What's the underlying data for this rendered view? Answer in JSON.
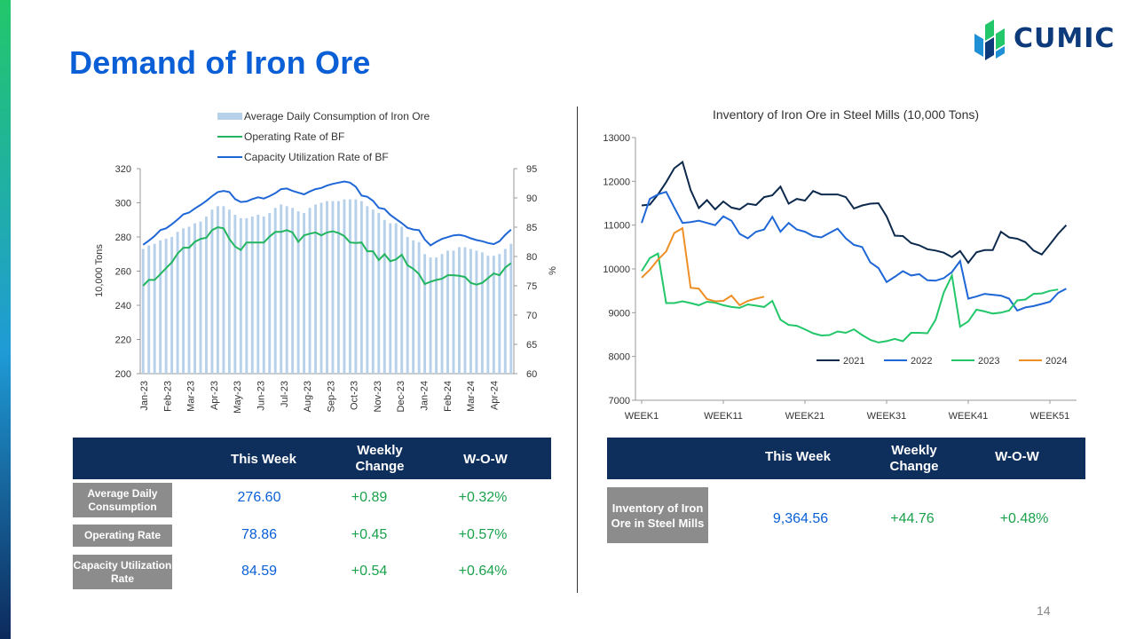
{
  "slide": {
    "title": "Demand of Iron Ore",
    "brand": "CUMIC",
    "page_number": "14",
    "colors": {
      "title": "#0a5fd6",
      "header_bg": "#0e2f5c",
      "label_bg": "#8c8c8c",
      "value_blue": "#0a5fd6",
      "value_green": "#1aa14b"
    }
  },
  "chart_data": [
    {
      "type": "bar+line",
      "title": "",
      "ylabel": "10,000 Tons",
      "y2label": "%",
      "ylim": [
        200,
        320
      ],
      "y2lim": [
        60,
        95
      ],
      "yticks": [
        200,
        220,
        240,
        260,
        280,
        300,
        320
      ],
      "y2ticks": [
        60,
        65,
        70,
        75,
        80,
        85,
        90,
        95
      ],
      "xticks": [
        "Jan-23",
        "Feb-23",
        "Mar-23",
        "Apr-23",
        "May-23",
        "Jun-23",
        "Jul-23",
        "Aug-23",
        "Sep-23",
        "Oct-23",
        "Nov-23",
        "Dec-23",
        "Jan-24",
        "Feb-24",
        "Mar-24",
        "Apr-24"
      ],
      "legend": [
        "Average Daily Consumption of Iron Ore",
        "Operating Rate of BF",
        "Capacity Utilization Rate of BF"
      ],
      "legend_position": "top",
      "series": [
        {
          "name": "Average Daily Consumption of Iron Ore",
          "kind": "bar",
          "axis": "left",
          "color": "#b7d1ea",
          "values": [
            273,
            275,
            276,
            278,
            279,
            280,
            283,
            285,
            286,
            288,
            289,
            292,
            296,
            298,
            298,
            296,
            293,
            291,
            291,
            292,
            293,
            292,
            294,
            297,
            299,
            298,
            297,
            295,
            294,
            297,
            299,
            300,
            301,
            301,
            301,
            302,
            302,
            302,
            301,
            298,
            296,
            294,
            290,
            288,
            288,
            286,
            280,
            278,
            277,
            270,
            268,
            268,
            270,
            272,
            272,
            274,
            274,
            273,
            272,
            271,
            269,
            269,
            270,
            273,
            276
          ]
        },
        {
          "name": "Operating Rate of BF",
          "kind": "line",
          "axis": "right",
          "color": "#22b55f",
          "values": [
            75,
            76,
            76,
            77,
            78,
            79,
            80.5,
            81.5,
            81.5,
            82.5,
            83,
            83.2,
            84.5,
            85,
            84.8,
            83,
            81.7,
            81.1,
            82.4,
            82.4,
            82.4,
            82.4,
            83.4,
            84.2,
            84.2,
            84.5,
            84.1,
            82.5,
            83.6,
            83.9,
            84.1,
            83.6,
            84.1,
            84.3,
            84,
            83.5,
            82.4,
            82.3,
            82.4,
            80.9,
            80.9,
            79.4,
            80.4,
            79.2,
            79.5,
            80.3,
            78.5,
            77.9,
            77,
            75.3,
            75.7,
            76,
            76.2,
            76.8,
            76.8,
            76.7,
            76.5,
            75.5,
            75.2,
            75.5,
            76.3,
            77.1,
            76.8,
            78.1,
            78.86
          ]
        },
        {
          "name": "Capacity Utilization Rate of BF",
          "kind": "line",
          "axis": "right",
          "color": "#1f67d6",
          "values": [
            82,
            82.7,
            83.5,
            84.5,
            84.8,
            85.5,
            86.3,
            87.2,
            87.5,
            88.2,
            88.8,
            89.5,
            90.3,
            91,
            91.2,
            91,
            89.8,
            89.3,
            89.4,
            89.8,
            90.1,
            89.9,
            90.3,
            90.8,
            91.5,
            91.6,
            91.2,
            90.9,
            90.6,
            91.1,
            91.5,
            91.7,
            92.1,
            92.4,
            92.6,
            92.8,
            92.6,
            91.9,
            90.4,
            90.2,
            89.5,
            88.3,
            88.1,
            87.1,
            86.4,
            85.7,
            84.9,
            84.6,
            84.5,
            82.9,
            81.9,
            82.5,
            83,
            83.3,
            83.6,
            83.7,
            83.5,
            83.1,
            82.8,
            82.6,
            82.3,
            82.1,
            82.6,
            83.7,
            84.59
          ]
        }
      ]
    },
    {
      "type": "line",
      "title": "Inventory of Iron Ore in Steel Mills (10,000 Tons)",
      "ylim": [
        7000,
        13000
      ],
      "yticks": [
        7000,
        8000,
        9000,
        10000,
        11000,
        12000,
        13000
      ],
      "xticks": [
        "WEEK1",
        "WEEK11",
        "WEEK21",
        "WEEK31",
        "WEEK41",
        "WEEK51"
      ],
      "xlim": [
        1,
        52
      ],
      "legend_position": "bottom-right",
      "series": [
        {
          "name": "2021",
          "color": "#0d2a4d",
          "values": [
            11450,
            11470,
            11700,
            11980,
            12300,
            12440,
            11800,
            11390,
            11570,
            11360,
            11540,
            11400,
            11360,
            11490,
            11460,
            11640,
            11680,
            11880,
            11490,
            11600,
            11560,
            11780,
            11700,
            11700,
            11700,
            11640,
            11380,
            11450,
            11490,
            11500,
            11200,
            10760,
            10750,
            10590,
            10540,
            10450,
            10420,
            10370,
            10270,
            10410,
            10140,
            10380,
            10430,
            10430,
            10850,
            10720,
            10690,
            10610,
            10420,
            10330,
            10560,
            10800,
            11000
          ]
        },
        {
          "name": "2022",
          "color": "#1f67d6",
          "values": [
            11050,
            11600,
            11700,
            11760,
            11400,
            11050,
            11070,
            11100,
            11050,
            11000,
            11200,
            11100,
            10800,
            10700,
            10850,
            10900,
            11190,
            10850,
            11050,
            10900,
            10850,
            10750,
            10720,
            10820,
            10920,
            10700,
            10550,
            10500,
            10150,
            10020,
            9700,
            9820,
            9950,
            9850,
            9880,
            9740,
            9730,
            9790,
            9930,
            10180,
            9320,
            9370,
            9430,
            9410,
            9390,
            9320,
            9050,
            9120,
            9150,
            9200,
            9250,
            9450,
            9550
          ]
        },
        {
          "name": "2023",
          "color": "#22c76a",
          "values": [
            9950,
            10250,
            10350,
            9220,
            9220,
            9260,
            9220,
            9170,
            9250,
            9230,
            9170,
            9130,
            9110,
            9190,
            9160,
            9130,
            9270,
            8840,
            8720,
            8700,
            8620,
            8530,
            8480,
            8490,
            8570,
            8540,
            8620,
            8490,
            8380,
            8320,
            8350,
            8400,
            8350,
            8540,
            8540,
            8530,
            8840,
            9460,
            9850,
            8680,
            8800,
            9070,
            9030,
            8980,
            9000,
            9050,
            9280,
            9300,
            9430,
            9440,
            9500,
            9530
          ]
        },
        {
          "name": "2024",
          "color": "#ee8f25",
          "values": [
            9800,
            9980,
            10210,
            10400,
            10820,
            10930,
            9570,
            9550,
            9310,
            9260,
            9270,
            9390,
            9170,
            9270,
            9320,
            9364.56
          ]
        }
      ]
    }
  ],
  "left_table": {
    "headers": [
      "This Week",
      "Weekly Change",
      "W-O-W"
    ],
    "rows": [
      {
        "label": "Average Daily Consumption",
        "this_week": "276.60",
        "weekly_change": "+0.89",
        "wow": "+0.32%"
      },
      {
        "label": "Operating Rate",
        "this_week": "78.86",
        "weekly_change": "+0.45",
        "wow": "+0.57%"
      },
      {
        "label": "Capacity Utilization Rate",
        "this_week": "84.59",
        "weekly_change": "+0.54",
        "wow": "+0.64%"
      }
    ]
  },
  "right_table": {
    "headers": [
      "This Week",
      "Weekly Change",
      "W-O-W"
    ],
    "rows": [
      {
        "label": "Inventory of Iron Ore in Steel Mills",
        "this_week": "9,364.56",
        "weekly_change": "+44.76",
        "wow": "+0.48%"
      }
    ]
  }
}
